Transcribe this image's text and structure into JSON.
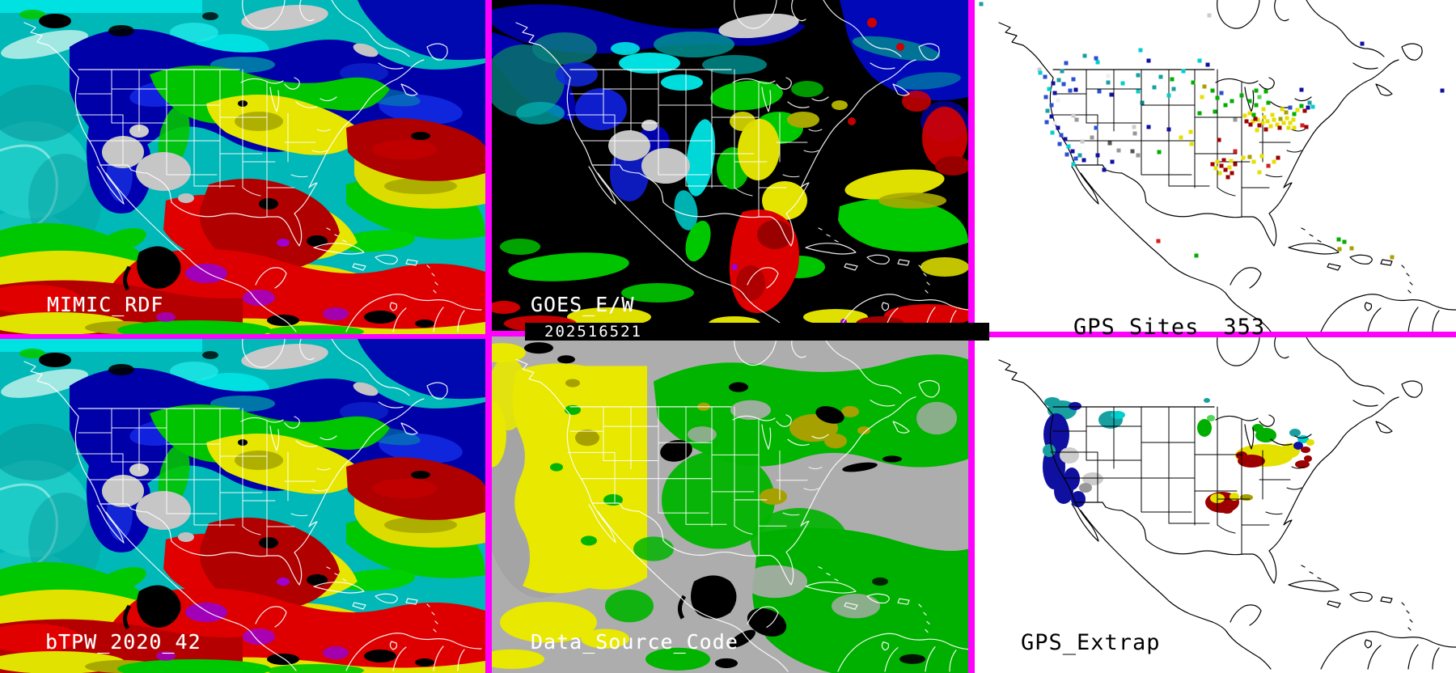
{
  "panels": {
    "mimic": {
      "label": "MIMIC_RDF"
    },
    "goes": {
      "label": "GOES_E/W",
      "timestamp": "202516521"
    },
    "gps_sites": {
      "label": "GPS Sites",
      "count": "353"
    },
    "btpw": {
      "label": "bTPW_2020_42"
    },
    "data_source": {
      "label": "Data_Source_Code"
    },
    "gps_extrap": {
      "label": "GPS_Extrap"
    }
  },
  "colors": {
    "divider": "#FF00FF",
    "right_panel_bg": "#FFFFFF",
    "goes_bg": "#000000",
    "datasource_bg": "#ADADAD",
    "timestamp_bar": "#000000",
    "palette": {
      "navy": "#1010A0",
      "blue": "#2A50D2",
      "cyan": "#00CFCF",
      "teal": "#18A0A0",
      "dkteal": "#0C7C7C",
      "ltgray": "#CCCCCC",
      "gray": "#989898",
      "dkgray": "#565656",
      "white": "#EFEFEF",
      "green": "#00AE00",
      "ltgreen": "#55D555",
      "yellow": "#E4E000",
      "olive": "#A6A000",
      "darkred": "#9C0000",
      "red": "#D21F1F"
    }
  },
  "gps_sites_dots": [
    [
      8,
      5,
      "teal"
    ],
    [
      290,
      19,
      "ltgray"
    ],
    [
      479,
      54,
      "navy"
    ],
    [
      578,
      112,
      "navy"
    ],
    [
      404,
      111,
      "navy"
    ],
    [
      80,
      86,
      "ltgray"
    ],
    [
      108,
      88,
      "teal"
    ],
    [
      81,
      90,
      "cyan"
    ],
    [
      87,
      95,
      "blue"
    ],
    [
      113,
      78,
      "blue"
    ],
    [
      150,
      72,
      "blue"
    ],
    [
      205,
      62,
      "cyan"
    ],
    [
      278,
      75,
      "cyan"
    ],
    [
      288,
      80,
      "navy"
    ],
    [
      152,
      77,
      "cyan"
    ],
    [
      136,
      69,
      "teal"
    ],
    [
      230,
      95,
      "teal"
    ],
    [
      258,
      88,
      "cyan"
    ],
    [
      246,
      110,
      "teal"
    ],
    [
      215,
      75,
      "navy"
    ],
    [
      97,
      103,
      "navy"
    ],
    [
      104,
      99,
      "teal"
    ],
    [
      110,
      104,
      "blue"
    ],
    [
      92,
      110,
      "cyan"
    ],
    [
      99,
      115,
      "navy"
    ],
    [
      88,
      120,
      "blue"
    ],
    [
      103,
      124,
      "white"
    ],
    [
      95,
      130,
      "blue"
    ],
    [
      90,
      137,
      "teal"
    ],
    [
      95,
      144,
      "navy"
    ],
    [
      89,
      151,
      "blue"
    ],
    [
      99,
      152,
      "white"
    ],
    [
      103,
      158,
      "navy"
    ],
    [
      96,
      164,
      "cyan"
    ],
    [
      107,
      167,
      "blue"
    ],
    [
      112,
      172,
      "navy"
    ],
    [
      105,
      178,
      "blue"
    ],
    [
      116,
      181,
      "cyan"
    ],
    [
      121,
      187,
      "navy"
    ],
    [
      114,
      191,
      "blue"
    ],
    [
      125,
      196,
      "blue"
    ],
    [
      130,
      192,
      "teal"
    ],
    [
      135,
      198,
      "navy"
    ],
    [
      122,
      203,
      "cyan"
    ],
    [
      165,
      94,
      "white"
    ],
    [
      165,
      102,
      "teal"
    ],
    [
      183,
      103,
      "cyan"
    ],
    [
      202,
      93,
      "teal"
    ],
    [
      202,
      113,
      "cyan"
    ],
    [
      207,
      127,
      "dkteal"
    ],
    [
      222,
      108,
      "teal"
    ],
    [
      240,
      118,
      "cyan"
    ],
    [
      154,
      113,
      "blue"
    ],
    [
      169,
      117,
      "navy"
    ],
    [
      118,
      112,
      "blue"
    ],
    [
      125,
      111,
      "navy"
    ],
    [
      122,
      98,
      "blue"
    ],
    [
      122,
      143,
      "ltgray"
    ],
    [
      126,
      148,
      "gray"
    ],
    [
      133,
      175,
      "ltgray"
    ],
    [
      145,
      170,
      "gray"
    ],
    [
      167,
      177,
      "dkgray"
    ],
    [
      197,
      157,
      "ltgray"
    ],
    [
      198,
      165,
      "gray"
    ],
    [
      215,
      157,
      "navy"
    ],
    [
      195,
      187,
      "dkgray"
    ],
    [
      202,
      192,
      "gray"
    ],
    [
      150,
      158,
      "blue"
    ],
    [
      152,
      192,
      "navy"
    ],
    [
      170,
      200,
      "navy"
    ],
    [
      178,
      186,
      "gray"
    ],
    [
      160,
      210,
      "navy"
    ],
    [
      228,
      188,
      "green"
    ],
    [
      244,
      98,
      "green"
    ],
    [
      270,
      102,
      "green"
    ],
    [
      281,
      120,
      "yellow"
    ],
    [
      284,
      107,
      "olive"
    ],
    [
      294,
      112,
      "green"
    ],
    [
      300,
      121,
      "green"
    ],
    [
      305,
      115,
      "blue"
    ],
    [
      297,
      138,
      "green"
    ],
    [
      278,
      140,
      "green"
    ],
    [
      310,
      130,
      "green"
    ],
    [
      322,
      148,
      "gray"
    ],
    [
      318,
      125,
      "green"
    ],
    [
      330,
      118,
      "green"
    ],
    [
      340,
      125,
      "green"
    ],
    [
      348,
      112,
      "green"
    ],
    [
      360,
      113,
      "green"
    ],
    [
      363,
      127,
      "green"
    ],
    [
      348,
      130,
      "green"
    ],
    [
      357,
      135,
      "yellow"
    ],
    [
      352,
      120,
      "ltgreen"
    ],
    [
      345,
      142,
      "green"
    ],
    [
      334,
      143,
      "yellow"
    ],
    [
      340,
      140,
      "yellow"
    ],
    [
      344,
      150,
      "yellow"
    ],
    [
      350,
      148,
      "yellow"
    ],
    [
      356,
      152,
      "yellow"
    ],
    [
      347,
      147,
      "darkred"
    ],
    [
      352,
      155,
      "darkred"
    ],
    [
      341,
      154,
      "darkred"
    ],
    [
      358,
      145,
      "yellow"
    ],
    [
      362,
      150,
      "yellow"
    ],
    [
      366,
      156,
      "yellow"
    ],
    [
      360,
      160,
      "darkred"
    ],
    [
      349,
      161,
      "yellow"
    ],
    [
      336,
      150,
      "darkred"
    ],
    [
      370,
      148,
      "yellow"
    ],
    [
      374,
      154,
      "yellow"
    ],
    [
      368,
      142,
      "yellow"
    ],
    [
      378,
      147,
      "olive"
    ],
    [
      382,
      152,
      "yellow"
    ],
    [
      386,
      146,
      "yellow"
    ],
    [
      377,
      158,
      "darkred"
    ],
    [
      390,
      152,
      "yellow"
    ],
    [
      394,
      148,
      "yellow"
    ],
    [
      388,
      158,
      "yellow"
    ],
    [
      380,
      135,
      "yellow"
    ],
    [
      385,
      139,
      "olive"
    ],
    [
      390,
      133,
      "blue"
    ],
    [
      395,
      141,
      "green"
    ],
    [
      399,
      136,
      "yellow"
    ],
    [
      404,
      131,
      "green"
    ],
    [
      408,
      137,
      "darkred"
    ],
    [
      412,
      133,
      "navy"
    ],
    [
      405,
      155,
      "red"
    ],
    [
      410,
      157,
      "darkred"
    ],
    [
      395,
      158,
      "yellow"
    ],
    [
      414,
      127,
      "teal"
    ],
    [
      418,
      132,
      "cyan"
    ],
    [
      267,
      163,
      "yellow"
    ],
    [
      268,
      178,
      "yellow"
    ],
    [
      255,
      170,
      "yellow"
    ],
    [
      240,
      160,
      "navy"
    ],
    [
      302,
      173,
      "darkred"
    ],
    [
      322,
      187,
      "red"
    ],
    [
      300,
      200,
      "yellow"
    ],
    [
      305,
      205,
      "darkred"
    ],
    [
      310,
      210,
      "darkred"
    ],
    [
      315,
      207,
      "yellow"
    ],
    [
      308,
      198,
      "darkred"
    ],
    [
      318,
      214,
      "darkred"
    ],
    [
      298,
      208,
      "yellow"
    ],
    [
      322,
      203,
      "darkred"
    ],
    [
      313,
      219,
      "darkred"
    ],
    [
      303,
      214,
      "yellow"
    ],
    [
      294,
      203,
      "darkred"
    ],
    [
      317,
      199,
      "yellow"
    ],
    [
      332,
      195,
      "yellow"
    ],
    [
      340,
      194,
      "olive"
    ],
    [
      355,
      193,
      "yellow"
    ],
    [
      363,
      205,
      "red"
    ],
    [
      352,
      213,
      "yellow"
    ],
    [
      345,
      200,
      "yellow"
    ],
    [
      370,
      200,
      "yellow"
    ],
    [
      375,
      195,
      "darkred"
    ],
    [
      227,
      298,
      "red"
    ],
    [
      274,
      316,
      "green"
    ],
    [
      450,
      296,
      "green"
    ],
    [
      457,
      299,
      "green"
    ],
    [
      451,
      308,
      "olive"
    ],
    [
      466,
      307,
      "olive"
    ],
    [
      516,
      318,
      "olive"
    ]
  ],
  "gps_extrap_blobs": [
    [
      108,
      90,
      18,
      12,
      "teal"
    ],
    [
      96,
      80,
      10,
      6,
      "teal"
    ],
    [
      124,
      85,
      8,
      5,
      "navy"
    ],
    [
      168,
      102,
      15,
      11,
      "teal"
    ],
    [
      177,
      96,
      9,
      5,
      "cyan"
    ],
    [
      101,
      120,
      16,
      26,
      "navy"
    ],
    [
      98,
      160,
      14,
      28,
      "navy"
    ],
    [
      110,
      190,
      12,
      16,
      "navy"
    ],
    [
      120,
      175,
      10,
      14,
      "navy"
    ],
    [
      128,
      200,
      9,
      10,
      "navy"
    ],
    [
      92,
      140,
      8,
      8,
      "teal"
    ],
    [
      117,
      146,
      12,
      10,
      "ltgray"
    ],
    [
      146,
      175,
      13,
      8,
      "ltgray"
    ],
    [
      137,
      186,
      8,
      6,
      "gray"
    ],
    [
      284,
      112,
      9,
      11,
      "green"
    ],
    [
      292,
      100,
      5,
      4,
      "ltgreen"
    ],
    [
      287,
      78,
      4,
      3,
      "teal"
    ],
    [
      360,
      121,
      13,
      9,
      "green"
    ],
    [
      350,
      112,
      7,
      5,
      "green"
    ],
    [
      358,
      146,
      36,
      14,
      "yellow"
    ],
    [
      390,
      140,
      12,
      9,
      "yellow"
    ],
    [
      342,
      153,
      17,
      8,
      "darkred"
    ],
    [
      330,
      146,
      7,
      5,
      "darkred"
    ],
    [
      405,
      157,
      9,
      5,
      "darkred"
    ],
    [
      412,
      150,
      5,
      4,
      "darkred"
    ],
    [
      396,
      118,
      7,
      5,
      "teal"
    ],
    [
      406,
      126,
      7,
      5,
      "cyan"
    ],
    [
      400,
      134,
      6,
      5,
      "navy"
    ],
    [
      409,
      139,
      6,
      4,
      "darkred"
    ],
    [
      415,
      130,
      5,
      4,
      "yellow"
    ],
    [
      306,
      204,
      21,
      13,
      "darkred"
    ],
    [
      300,
      199,
      9,
      6,
      "yellow"
    ],
    [
      321,
      197,
      6,
      5,
      "yellow"
    ],
    [
      336,
      198,
      8,
      4,
      "olive"
    ],
    [
      312,
      214,
      7,
      4,
      "darkred"
    ]
  ]
}
